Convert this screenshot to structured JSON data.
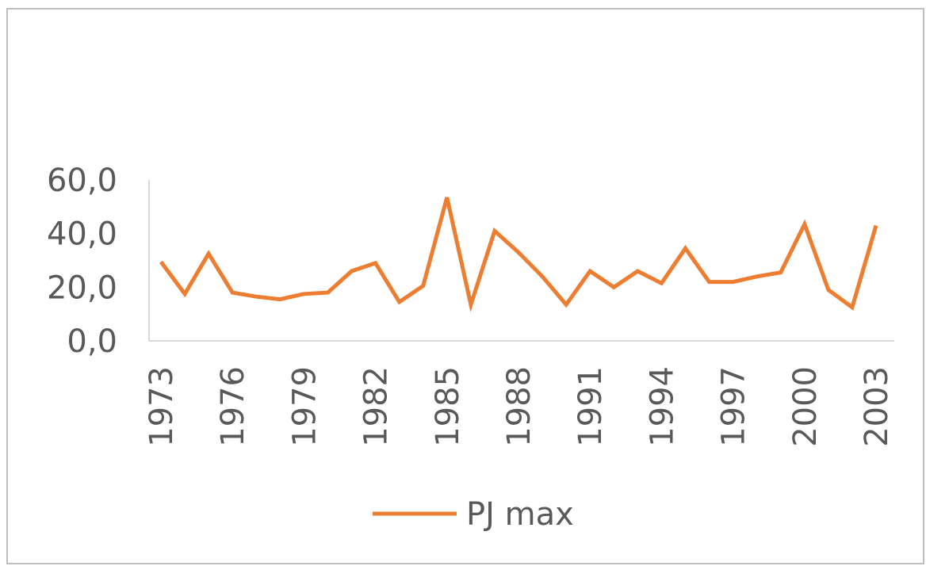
{
  "chart_data": {
    "type": "line",
    "title": "",
    "xlabel": "",
    "ylabel": "",
    "x": [
      1973,
      1974,
      1975,
      1976,
      1977,
      1978,
      1979,
      1980,
      1981,
      1982,
      1983,
      1984,
      1985,
      1986,
      1987,
      1988,
      1989,
      1990,
      1991,
      1992,
      1993,
      1994,
      1995,
      1996,
      1997,
      1998,
      1999,
      2000,
      2001,
      2002,
      2003
    ],
    "x_tick_labels": [
      "1973",
      "1976",
      "1979",
      "1982",
      "1985",
      "1988",
      "1991",
      "1994",
      "1997",
      "2000",
      "2003"
    ],
    "y_tick_labels": [
      "0,0",
      "20,0",
      "40,0",
      "60,0"
    ],
    "ylim": [
      0,
      60
    ],
    "grid": false,
    "legend_position": "bottom",
    "series": [
      {
        "name": "PJ max",
        "color": "#ED7D31",
        "values": [
          29.5,
          17.5,
          32.5,
          18.0,
          16.5,
          15.5,
          17.5,
          18.0,
          26.0,
          29.0,
          14.5,
          20.5,
          53.5,
          13.5,
          41.0,
          33.0,
          24.0,
          13.5,
          26.0,
          20.0,
          26.0,
          21.5,
          34.5,
          22.0,
          22.0,
          24.0,
          25.5,
          43.5,
          19.0,
          12.5,
          43.0
        ]
      }
    ]
  }
}
